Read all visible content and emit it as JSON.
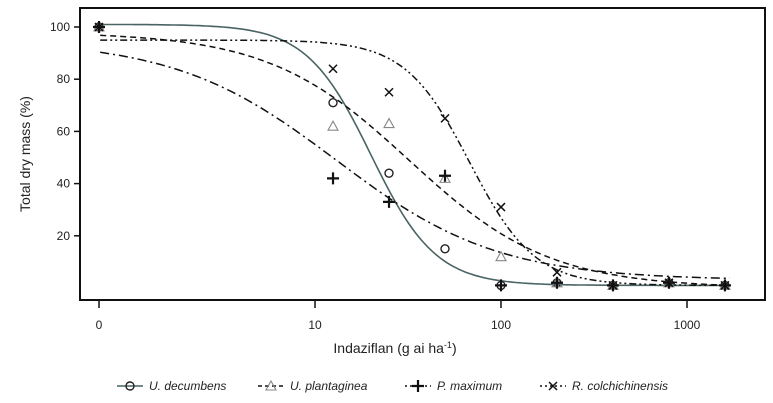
{
  "chart_data": {
    "type": "line",
    "title": "",
    "xlabel": "Indaziflan (g ai ha",
    "xlabel_sup": "-1",
    "xlabel_end": ")",
    "ylabel": "Total dry mass (%)",
    "xscale": "log (0 = untreated control)",
    "ylim": [
      0,
      105
    ],
    "x_ticks": [
      {
        "value": 0,
        "label": "0"
      },
      {
        "value": 10,
        "label": "10"
      },
      {
        "value": 100,
        "label": "100"
      },
      {
        "value": 1000,
        "label": "1000"
      }
    ],
    "y_ticks": [
      {
        "value": 20,
        "label": "20"
      },
      {
        "value": 40,
        "label": "40"
      },
      {
        "value": 60,
        "label": "60"
      },
      {
        "value": 80,
        "label": "80"
      },
      {
        "value": 100,
        "label": "100"
      }
    ],
    "legend_position": "bottom",
    "doses": [
      0,
      12.5,
      25,
      50,
      100,
      200,
      400,
      800,
      1600
    ],
    "series": [
      {
        "name": "U. decumbens",
        "marker": "circle",
        "line": "solid",
        "color": "#4a6464",
        "values": [
          100,
          71,
          44,
          15,
          1,
          2,
          1,
          2,
          1
        ],
        "fit": {
          "d": 101,
          "c": 1,
          "e": 20,
          "b": 2.5
        }
      },
      {
        "name": "U. plantaginea",
        "marker": "triangle",
        "line": "dashed",
        "color": "#111111",
        "values": [
          100,
          62,
          63,
          42,
          12,
          2,
          1,
          2,
          1
        ],
        "fit": {
          "d": 98,
          "c": 0,
          "e": 32,
          "b": 1.15
        }
      },
      {
        "name": "P. maximum",
        "marker": "plus",
        "line": "dash-dot",
        "color": "#111111",
        "values": [
          100,
          42,
          33,
          43,
          1,
          2,
          1,
          2,
          1
        ],
        "fit": {
          "d": 95,
          "c": 3,
          "e": 13,
          "b": 1.0
        }
      },
      {
        "name": "R. colchichinensis",
        "marker": "x",
        "line": "dash-dot-dot",
        "color": "#111111",
        "values": [
          100,
          84,
          75,
          65,
          31,
          6,
          1,
          2,
          1
        ],
        "fit": {
          "d": 95,
          "c": 1,
          "e": 68,
          "b": 2.5
        }
      }
    ]
  }
}
